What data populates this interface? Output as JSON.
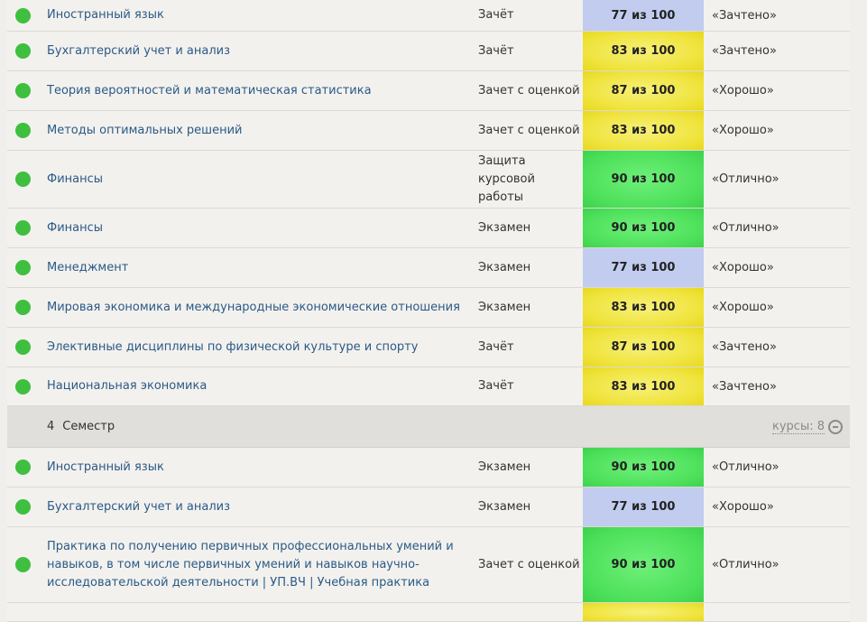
{
  "semester_label": "Семестр",
  "rows_top": [
    {
      "name": "Иностранный язык",
      "type": "Зачёт",
      "score": "77 из 100",
      "grade": "«Зачтено»",
      "color": "blue",
      "h": 34
    },
    {
      "name": "Бухгалтерский учет и анализ",
      "type": "Зачёт",
      "score": "83 из 100",
      "grade": "«Зачтено»",
      "color": "yellow",
      "h": 43
    },
    {
      "name": "Теория вероятностей и математическая статистика",
      "type": "Зачет с оценкой",
      "score": "87 из 100",
      "grade": "«Хорошо»",
      "color": "yellow",
      "h": 43
    },
    {
      "name": "Методы оптимальных решений",
      "type": "Зачет с оценкой",
      "score": "83 из 100",
      "grade": "«Хорошо»",
      "color": "yellow",
      "h": 43
    },
    {
      "name": "Финансы",
      "type": "Защита курсовой работы",
      "score": "90 из 100",
      "grade": "«Отлично»",
      "color": "green",
      "h": 63
    },
    {
      "name": "Финансы",
      "type": "Экзамен",
      "score": "90 из 100",
      "grade": "«Отлично»",
      "color": "green",
      "h": 43
    },
    {
      "name": "Менеджмент",
      "type": "Экзамен",
      "score": "77 из 100",
      "grade": "«Хорошо»",
      "color": "blue",
      "h": 43
    },
    {
      "name": "Мировая экономика и международные экономические отношения",
      "type": "Экзамен",
      "score": "83 из 100",
      "grade": "«Хорошо»",
      "color": "yellow",
      "h": 43
    },
    {
      "name": "Элективные дисциплины по физической культуре и спорту",
      "type": "Зачёт",
      "score": "87 из 100",
      "grade": "«Зачтено»",
      "color": "yellow",
      "h": 43
    },
    {
      "name": "Национальная экономика",
      "type": "Зачёт",
      "score": "83 из 100",
      "grade": "«Зачтено»",
      "color": "yellow",
      "h": 42
    }
  ],
  "semester": {
    "number": "4",
    "label": "Семестр",
    "courses": "курсы: 8"
  },
  "rows_bottom": [
    {
      "name": "Иностранный язык",
      "type": "Экзамен",
      "score": "90 из 100",
      "grade": "«Отлично»",
      "color": "green",
      "h": 43
    },
    {
      "name": "Бухгалтерский учет и анализ",
      "type": "Экзамен",
      "score": "77 из 100",
      "grade": "«Хорошо»",
      "color": "blue",
      "h": 43
    },
    {
      "name": "Практика по получению первичных профессиональных умений и навыков, в том числе первичных умений и навыков научно-исследовательской деятельности | УП.ВЧ | Учебная практика",
      "type": "Зачет с оценкой",
      "score": "90 из 100",
      "grade": "«Отлично»",
      "color": "green",
      "h": 83
    },
    {
      "name": "",
      "type": "",
      "score": "",
      "grade": "",
      "color": "yellow",
      "h": 20
    }
  ]
}
